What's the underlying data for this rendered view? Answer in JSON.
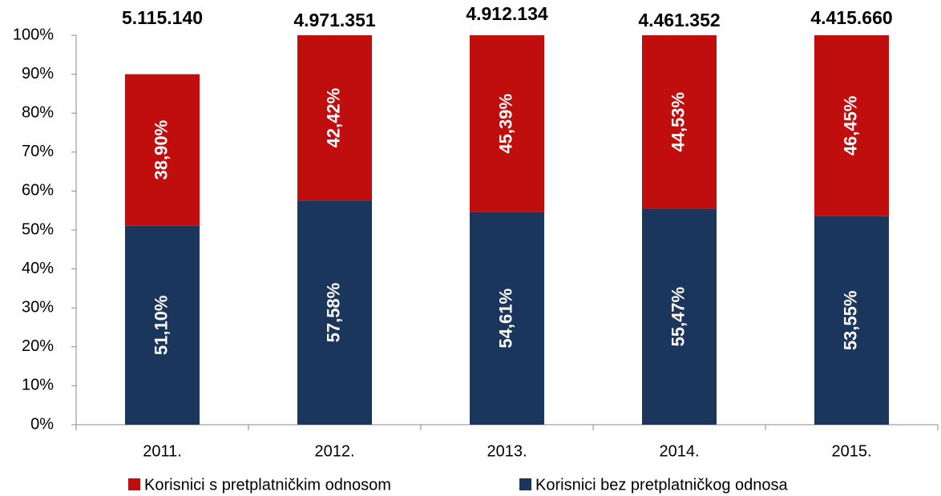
{
  "chart_data": {
    "type": "bar",
    "stacked": true,
    "categories": [
      "2011.",
      "2012.",
      "2013.",
      "2014.",
      "2015."
    ],
    "series": [
      {
        "name": "Korisnici s pretplatničkim odnosom",
        "color": "#c00d0d",
        "values": [
          38.9,
          42.42,
          45.39,
          44.53,
          46.45
        ],
        "value_labels": [
          "38,90%",
          "42,42%",
          "45,39%",
          "44,53%",
          "46,45%"
        ]
      },
      {
        "name": "Korisnici bez pretplatničkog odnosa",
        "color": "#1b365d",
        "values": [
          51.1,
          57.58,
          54.61,
          55.47,
          53.55
        ],
        "value_labels": [
          "51,10%",
          "57,58%",
          "54,61%",
          "55,47%",
          "53,55%"
        ]
      }
    ],
    "totals": {
      "values": [
        5115140,
        4971351,
        4912134,
        4461352,
        4415660
      ],
      "value_labels": [
        "5.115.140",
        "4.971.351",
        "4.912.134",
        "4.461.352",
        "4.415.660"
      ]
    },
    "ylim": [
      0,
      100
    ],
    "yticks": [
      {
        "value": 0,
        "label": "0%"
      },
      {
        "value": 10,
        "label": "10%"
      },
      {
        "value": 20,
        "label": "20%"
      },
      {
        "value": 30,
        "label": "30%"
      },
      {
        "value": 40,
        "label": "40%"
      },
      {
        "value": 50,
        "label": "50%"
      },
      {
        "value": 60,
        "label": "60%"
      },
      {
        "value": 70,
        "label": "70%"
      },
      {
        "value": 80,
        "label": "80%"
      },
      {
        "value": 90,
        "label": "90%"
      },
      {
        "value": 100,
        "label": "100%"
      }
    ],
    "grid": false,
    "legend": "bottom"
  }
}
